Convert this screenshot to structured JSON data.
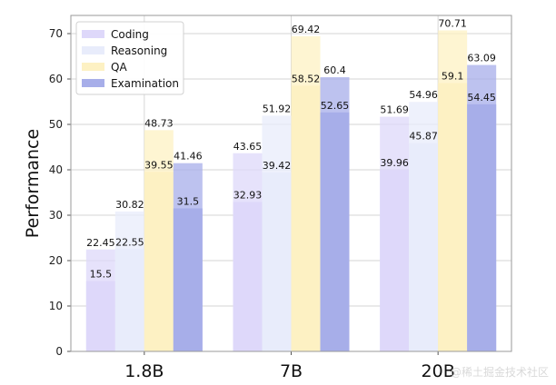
{
  "chart_data": {
    "type": "bar",
    "ylabel": "Performance",
    "xlabel": "",
    "ylim": [
      0,
      74
    ],
    "yticks": [
      0,
      10,
      20,
      30,
      40,
      50,
      60,
      70
    ],
    "grid": true,
    "legend_position": "top-left",
    "categories": [
      "1.8B",
      "7B",
      "20B"
    ],
    "series": [
      {
        "name": "Coding",
        "color": "#ded8fa",
        "values": [
          22.45,
          43.65,
          51.69
        ],
        "lower": [
          15.5,
          32.93,
          39.96
        ]
      },
      {
        "name": "Reasoning",
        "color": "#e8ecfb",
        "values": [
          30.82,
          51.92,
          54.96
        ],
        "lower": [
          22.55,
          39.42,
          45.87
        ]
      },
      {
        "name": "QA",
        "color": "#fdf1c3",
        "values": [
          48.73,
          69.42,
          70.71
        ],
        "lower": [
          39.55,
          58.52,
          59.1
        ]
      },
      {
        "name": "Examination",
        "color": "#a7aee9",
        "values": [
          41.46,
          60.4,
          63.09
        ],
        "lower": [
          31.5,
          52.65,
          54.45
        ]
      }
    ]
  },
  "watermark": "@稀土掘金技术社区"
}
